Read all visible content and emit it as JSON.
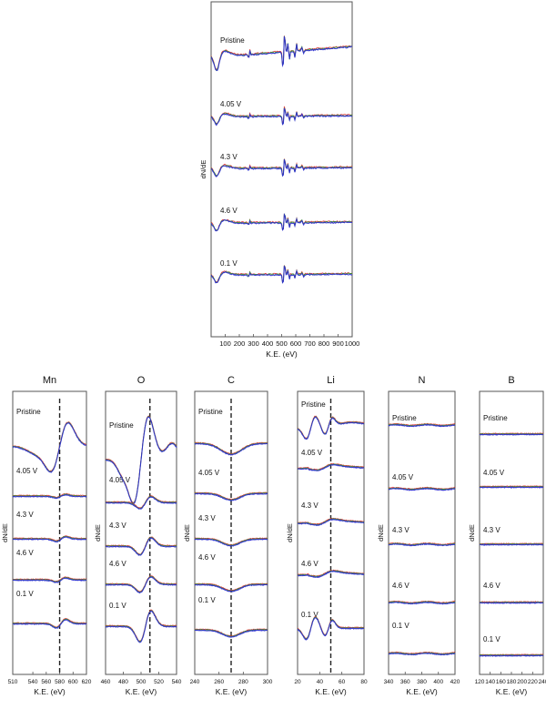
{
  "chart_data": [
    {
      "type": "line",
      "title": "",
      "xlabel": "K.E. (eV)",
      "ylabel": "dN/dE",
      "xlim": [
        0,
        1000
      ],
      "xticks": [
        100,
        200,
        300,
        400,
        500,
        600,
        700,
        800,
        900,
        1000
      ],
      "grid": false,
      "offsets": [
        "Pristine",
        "4.05 V",
        "4.3 V",
        "4.6 V",
        "0.1 V"
      ],
      "series_colors": [
        "#e03030",
        "#2a9a2a",
        "#2b2bd0"
      ],
      "peaks_eV": [
        40,
        270,
        510,
        540,
        590,
        640
      ]
    },
    {
      "type": "line",
      "title": "Mn",
      "xlabel": "K.E. (eV)",
      "ylabel": "dN/dE",
      "xlim": [
        510,
        620
      ],
      "xticks": [
        510,
        540,
        560,
        580,
        600,
        620
      ],
      "reference_line": 580,
      "offsets": [
        "Pristine",
        "4.05 V",
        "4.3 V",
        "4.6 V",
        "0.1 V"
      ]
    },
    {
      "type": "line",
      "title": "O",
      "xlabel": "K.E. (eV)",
      "ylabel": "dNdE",
      "xlim": [
        460,
        540
      ],
      "xticks": [
        460,
        480,
        500,
        520,
        540
      ],
      "reference_line": 510,
      "offsets": [
        "Pristine",
        "4.05 V",
        "4.3 V",
        "4.6 V",
        "0.1 V"
      ]
    },
    {
      "type": "line",
      "title": "C",
      "xlabel": "K.E. (eV)",
      "ylabel": "dNdE",
      "xlim": [
        240,
        300
      ],
      "xticks": [
        240,
        260,
        280,
        300
      ],
      "reference_line": 270,
      "offsets": [
        "Pristine",
        "4.05 V",
        "4.3 V",
        "4.6 V",
        "0.1 V"
      ]
    },
    {
      "type": "line",
      "title": "Li",
      "xlabel": "K.E. (eV)",
      "ylabel": "dN/dE",
      "xlim": [
        20,
        80
      ],
      "xticks": [
        20,
        40,
        60,
        80
      ],
      "reference_line": 50,
      "offsets": [
        "Pristine",
        "4.05 V",
        "4.3 V",
        "4.6 V",
        "0.1 V"
      ]
    },
    {
      "type": "line",
      "title": "N",
      "xlabel": "K.E. (eV)",
      "ylabel": "dNdE",
      "xlim": [
        340,
        420
      ],
      "xticks": [
        340,
        360,
        380,
        400,
        420
      ],
      "offsets": [
        "Pristine",
        "4.05 V",
        "4.3 V",
        "4.6 V",
        "0.1 V"
      ]
    },
    {
      "type": "line",
      "title": "B",
      "xlabel": "K.E. (eV)",
      "ylabel": "dNdE",
      "xlim": [
        120,
        240
      ],
      "xticks": [
        120,
        140,
        160,
        180,
        200,
        220,
        240
      ],
      "offsets": [
        "Pristine",
        "4.05 V",
        "4.3 V",
        "4.6 V",
        "0.1 V"
      ]
    }
  ]
}
